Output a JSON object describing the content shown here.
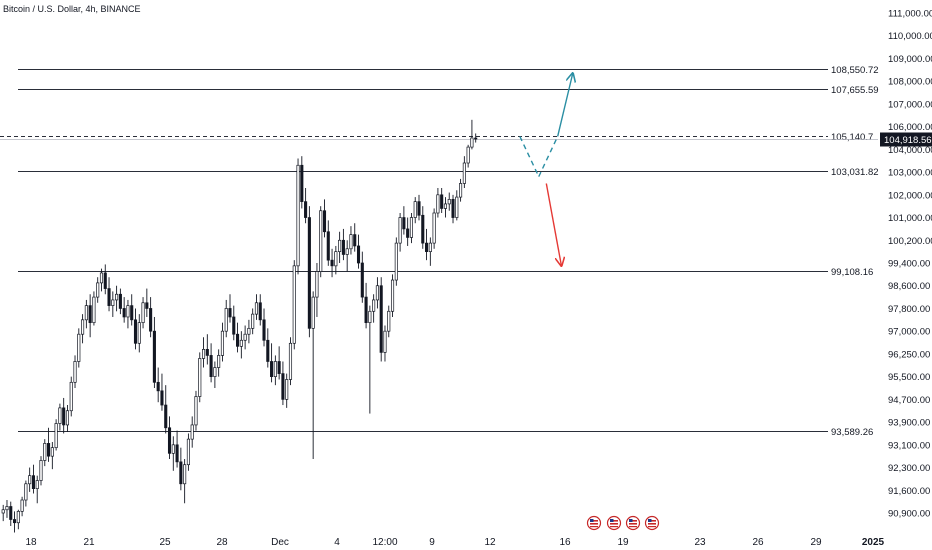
{
  "symbol_title": "Bitcoin / U.S. Dollar, 4h, BINANCE",
  "chart_data": {
    "type": "candlestick",
    "title": "Bitcoin / U.S. Dollar, 4h, BINANCE",
    "y_axis": {
      "ticks": [
        "111,000.00",
        "110,000.00",
        "109,000.00",
        "108,000.00",
        "107,000.00",
        "106,000.00",
        "104,000.00",
        "103,000.00",
        "102,000.00",
        "101,000.00",
        "100,200.00",
        "99,400.00",
        "98,600.00",
        "97,800.00",
        "97,000.00",
        "96,250.00",
        "95,500.00",
        "94,700.00",
        "93,900.00",
        "93,100.00",
        "92,300.00",
        "91,600.00",
        "90,900.00"
      ]
    },
    "x_axis": {
      "ticks": [
        "18",
        "21",
        "25",
        "28",
        "Dec",
        "4",
        "12:00",
        "9",
        "12",
        "16",
        "19",
        "23",
        "26",
        "29",
        "2025"
      ]
    },
    "current_price": {
      "value": 104918.56,
      "label": "104,918.56",
      "color": "#131722"
    },
    "levels": [
      {
        "value": 108550.72,
        "label": "108,550.72",
        "style": "solid"
      },
      {
        "value": 107655.59,
        "label": "107,655.59",
        "style": "solid"
      },
      {
        "value": 105140.7,
        "label": "105,140.7",
        "style": "dashed"
      },
      {
        "value": 103031.82,
        "label": "103,031.82",
        "style": "solid"
      },
      {
        "value": 99108.16,
        "label": "99,108.16",
        "style": "solid"
      },
      {
        "value": 93589.26,
        "label": "93,589.26",
        "style": "solid"
      }
    ],
    "candles": [
      [
        90900,
        91150,
        90650,
        91000
      ],
      [
        91000,
        91300,
        90750,
        91100
      ],
      [
        91100,
        91250,
        90500,
        90700
      ],
      [
        90700,
        90950,
        90300,
        90600
      ],
      [
        90600,
        91000,
        90400,
        90950
      ],
      [
        90950,
        91400,
        90800,
        91300
      ],
      [
        91300,
        91900,
        91100,
        91800
      ],
      [
        91800,
        92300,
        91550,
        92050
      ],
      [
        92050,
        92400,
        91500,
        91650
      ],
      [
        91650,
        92050,
        91200,
        91900
      ],
      [
        91900,
        92700,
        91750,
        92550
      ],
      [
        92550,
        93300,
        92350,
        93150
      ],
      [
        93150,
        93700,
        92500,
        92700
      ],
      [
        92700,
        93200,
        92250,
        93000
      ],
      [
        93000,
        94000,
        92900,
        93850
      ],
      [
        93850,
        94550,
        93600,
        94400
      ],
      [
        94400,
        94750,
        93500,
        93800
      ],
      [
        93800,
        94500,
        93550,
        94300
      ],
      [
        94300,
        95500,
        94100,
        95300
      ],
      [
        95300,
        96200,
        95100,
        96000
      ],
      [
        96000,
        97100,
        95800,
        96900
      ],
      [
        96900,
        97600,
        96600,
        97400
      ],
      [
        97400,
        98100,
        97100,
        97900
      ],
      [
        97900,
        98300,
        96800,
        97300
      ],
      [
        97300,
        98400,
        97200,
        98200
      ],
      [
        98200,
        98900,
        98000,
        98700
      ],
      [
        98700,
        99200,
        98400,
        99050
      ],
      [
        99050,
        99350,
        98300,
        98500
      ],
      [
        98500,
        98900,
        97700,
        97900
      ],
      [
        97900,
        98400,
        97500,
        98100
      ],
      [
        98100,
        98600,
        97700,
        98300
      ],
      [
        98300,
        98500,
        97600,
        97800
      ],
      [
        97800,
        98200,
        97300,
        97500
      ],
      [
        97500,
        98100,
        97100,
        97900
      ],
      [
        97900,
        98300,
        97200,
        97400
      ],
      [
        97400,
        97800,
        96400,
        96600
      ],
      [
        96600,
        97600,
        96300,
        97300
      ],
      [
        97300,
        98200,
        97100,
        98000
      ],
      [
        98000,
        98500,
        97500,
        97800
      ],
      [
        97800,
        98200,
        96800,
        97000
      ],
      [
        97000,
        97500,
        95100,
        95300
      ],
      [
        95300,
        95800,
        94600,
        95000
      ],
      [
        95000,
        95600,
        94300,
        94500
      ],
      [
        94500,
        95200,
        93500,
        93700
      ],
      [
        93700,
        94100,
        92600,
        92800
      ],
      [
        92800,
        93400,
        92200,
        93100
      ],
      [
        93100,
        93600,
        92300,
        92500
      ],
      [
        92500,
        93000,
        91600,
        91800
      ],
      [
        91800,
        92600,
        91200,
        92400
      ],
      [
        92400,
        93500,
        92200,
        93300
      ],
      [
        93300,
        94100,
        93000,
        93800
      ],
      [
        93800,
        95000,
        93600,
        94800
      ],
      [
        94800,
        96300,
        94600,
        96100
      ],
      [
        96100,
        96800,
        95800,
        96400
      ],
      [
        96400,
        96900,
        95900,
        96200
      ],
      [
        96200,
        96600,
        95300,
        95500
      ],
      [
        95500,
        96000,
        95100,
        95800
      ],
      [
        95800,
        96400,
        95500,
        96200
      ],
      [
        96200,
        97300,
        96000,
        97000
      ],
      [
        97000,
        98100,
        96800,
        97800
      ],
      [
        97800,
        98300,
        97300,
        97500
      ],
      [
        97500,
        97900,
        96700,
        96900
      ],
      [
        96900,
        97300,
        96300,
        96500
      ],
      [
        96500,
        97000,
        96100,
        96700
      ],
      [
        96700,
        97200,
        96400,
        96900
      ],
      [
        96900,
        97400,
        96600,
        97100
      ],
      [
        97100,
        97800,
        96900,
        97600
      ],
      [
        97600,
        98300,
        97400,
        98000
      ],
      [
        98000,
        98300,
        97200,
        97400
      ],
      [
        97400,
        97800,
        96500,
        96700
      ],
      [
        96700,
        97100,
        95800,
        96000
      ],
      [
        96000,
        96600,
        95300,
        95500
      ],
      [
        95500,
        96200,
        95200,
        96000
      ],
      [
        96000,
        96500,
        95400,
        95600
      ],
      [
        95600,
        96000,
        94500,
        94700
      ],
      [
        94700,
        95600,
        94400,
        95400
      ],
      [
        95400,
        96800,
        95200,
        96600
      ],
      [
        96600,
        99500,
        96400,
        99300
      ],
      [
        99300,
        103600,
        99000,
        103300
      ],
      [
        103300,
        103700,
        101400,
        101700
      ],
      [
        101700,
        102300,
        100800,
        101000
      ],
      [
        101000,
        101500,
        96800,
        97100
      ],
      [
        97100,
        98400,
        92600,
        98200
      ],
      [
        98200,
        99400,
        97500,
        99100
      ],
      [
        99100,
        101500,
        98900,
        101300
      ],
      [
        101300,
        101800,
        100300,
        100500
      ],
      [
        100500,
        100900,
        99300,
        99500
      ],
      [
        99500,
        99900,
        98900,
        99300
      ],
      [
        99300,
        100000,
        99000,
        99800
      ],
      [
        99800,
        100500,
        99400,
        100200
      ],
      [
        100200,
        100600,
        99500,
        99700
      ],
      [
        99700,
        100200,
        99100,
        99900
      ],
      [
        99900,
        100700,
        99700,
        100400
      ],
      [
        100400,
        100800,
        99800,
        100000
      ],
      [
        100000,
        100400,
        99200,
        99400
      ],
      [
        99400,
        99800,
        98000,
        98200
      ],
      [
        98200,
        98700,
        97100,
        97300
      ],
      [
        97300,
        97900,
        94200,
        97700
      ],
      [
        97700,
        98300,
        97300,
        98100
      ],
      [
        98100,
        98900,
        97800,
        98600
      ],
      [
        98600,
        98900,
        96000,
        96300
      ],
      [
        96300,
        97200,
        96000,
        97000
      ],
      [
        97000,
        97900,
        96800,
        97700
      ],
      [
        97700,
        99000,
        97500,
        98800
      ],
      [
        98800,
        100300,
        98600,
        100100
      ],
      [
        100100,
        101200,
        99800,
        101000
      ],
      [
        101000,
        101500,
        100400,
        100600
      ],
      [
        100600,
        101000,
        100000,
        100300
      ],
      [
        100300,
        101200,
        100100,
        101000
      ],
      [
        101000,
        101900,
        100800,
        101700
      ],
      [
        101700,
        102000,
        100900,
        101100
      ],
      [
        101100,
        101500,
        99900,
        100100
      ],
      [
        100100,
        100600,
        99500,
        99800
      ],
      [
        99800,
        100300,
        99300,
        100100
      ],
      [
        100100,
        101400,
        99900,
        101200
      ],
      [
        101200,
        102300,
        101000,
        102000
      ],
      [
        102000,
        102300,
        101200,
        101400
      ],
      [
        101400,
        101900,
        101000,
        101600
      ],
      [
        101600,
        102100,
        101300,
        101800
      ],
      [
        101800,
        102000,
        100800,
        101000
      ],
      [
        101000,
        102200,
        100900,
        101900
      ],
      [
        101900,
        102700,
        101700,
        102500
      ],
      [
        102500,
        103700,
        102300,
        103400
      ],
      [
        103400,
        104400,
        103200,
        104200
      ],
      [
        104200,
        106300,
        104000,
        105000
      ],
      [
        105000,
        105400,
        104600,
        104918.56
      ]
    ],
    "projections": [
      {
        "from_candle": 137,
        "from_value": 105140.7,
        "to_candle": 142,
        "to_value": 102800,
        "style": "dashed",
        "color": "#2a8ea3"
      },
      {
        "from_candle": 142,
        "from_value": 102800,
        "to_candle": 147,
        "to_value": 105140.7,
        "style": "dashed",
        "color": "#2a8ea3"
      },
      {
        "from_candle": 147,
        "from_value": 105140.7,
        "to_candle": 151,
        "to_value": 108350,
        "style": "arrow",
        "color": "#2a8ea3"
      },
      {
        "from_candle": 144,
        "from_value": 102500,
        "to_candle": 148,
        "to_value": 99300,
        "style": "arrow",
        "color": "#e53935"
      }
    ],
    "event_markers": [
      "flag-icon",
      "flag-icon",
      "flag-icon",
      "flag-icon"
    ]
  },
  "colors": {
    "candle": "#131722",
    "grid": "#e6e6e6",
    "level_line": "#2a2e39",
    "cyan_arrow": "#2a8ea3",
    "red_arrow": "#e53935"
  }
}
